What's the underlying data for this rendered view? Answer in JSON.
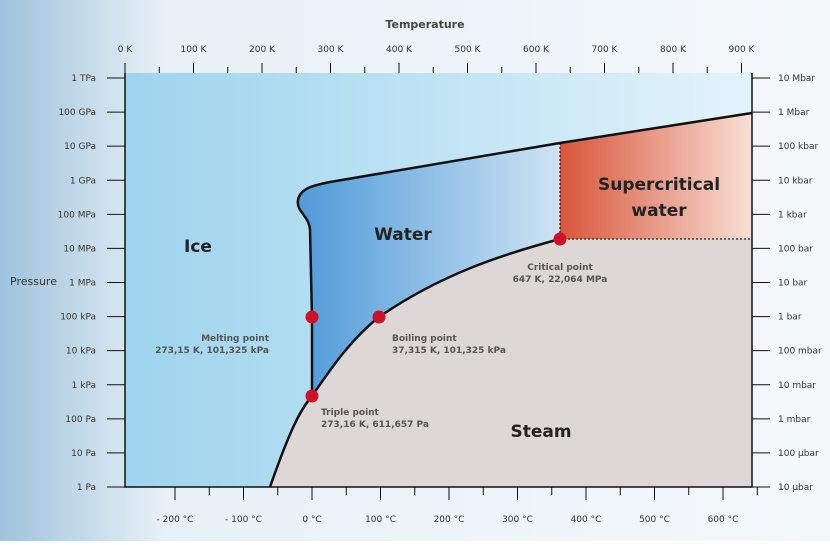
{
  "axes": {
    "top_title": "Temperature",
    "left_title": "Pressure",
    "top_ticks": [
      "0 K",
      "100 K",
      "200 K",
      "300 K",
      "400 K",
      "500 K",
      "600 K",
      "700 K",
      "800 K",
      "900 K"
    ],
    "bottom_ticks": [
      "- 200 °C",
      "- 100 °C",
      "0 °C",
      "100 °C",
      "200 °C",
      "300 °C",
      "400 °C",
      "500 °C",
      "600 °C"
    ],
    "left_ticks": [
      "1 TPa",
      "100 GPa",
      "10 GPa",
      "1 GPa",
      "100 MPa",
      "10 MPa",
      "1 MPa",
      "100 kPa",
      "10 kPa",
      "1 kPa",
      "100 Pa",
      "10 Pa",
      "1 Pa"
    ],
    "right_ticks": [
      "10 Mbar",
      "1 Mbar",
      "100 kbar",
      "10 kbar",
      "1 kbar",
      "100 bar",
      "10 bar",
      "1 bar",
      "100 mbar",
      "10 mbar",
      "1 mbar",
      "100 µbar",
      "10 µbar"
    ]
  },
  "regions": {
    "ice": "Ice",
    "water": "Water",
    "steam": "Steam",
    "supercritical": [
      "Supercritical",
      "water"
    ]
  },
  "points": [
    {
      "name": "Melting point",
      "detail": "273,15 K, 101,325 kPa"
    },
    {
      "name": "Boiling point",
      "detail": "37,315 K, 101,325 kPa"
    },
    {
      "name": "Triple point",
      "detail": "273,16 K, 611,657 Pa"
    },
    {
      "name": "Critical point",
      "detail": "647 K, 22,064 MPa"
    }
  ]
}
